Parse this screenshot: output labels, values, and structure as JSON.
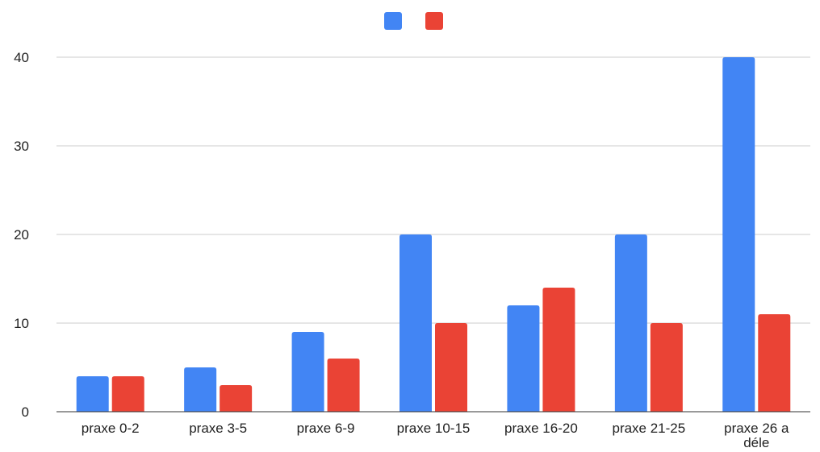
{
  "chart_data": {
    "type": "bar",
    "categories": [
      "praxe 0-2",
      "praxe 3-5",
      "praxe 6-9",
      "praxe 10-15",
      "praxe 16-20",
      "praxe 21-25",
      "praxe 26 a déle"
    ],
    "series": [
      {
        "values": [
          4,
          5,
          9,
          20,
          12,
          20,
          40
        ],
        "color": "#4285f4"
      },
      {
        "values": [
          4,
          3,
          6,
          10,
          14,
          10,
          11
        ],
        "color": "#ea4335"
      }
    ],
    "ylim": [
      0,
      40
    ],
    "yticks": [
      0,
      10,
      20,
      30,
      40
    ],
    "grid": true,
    "legend": "top-center"
  }
}
